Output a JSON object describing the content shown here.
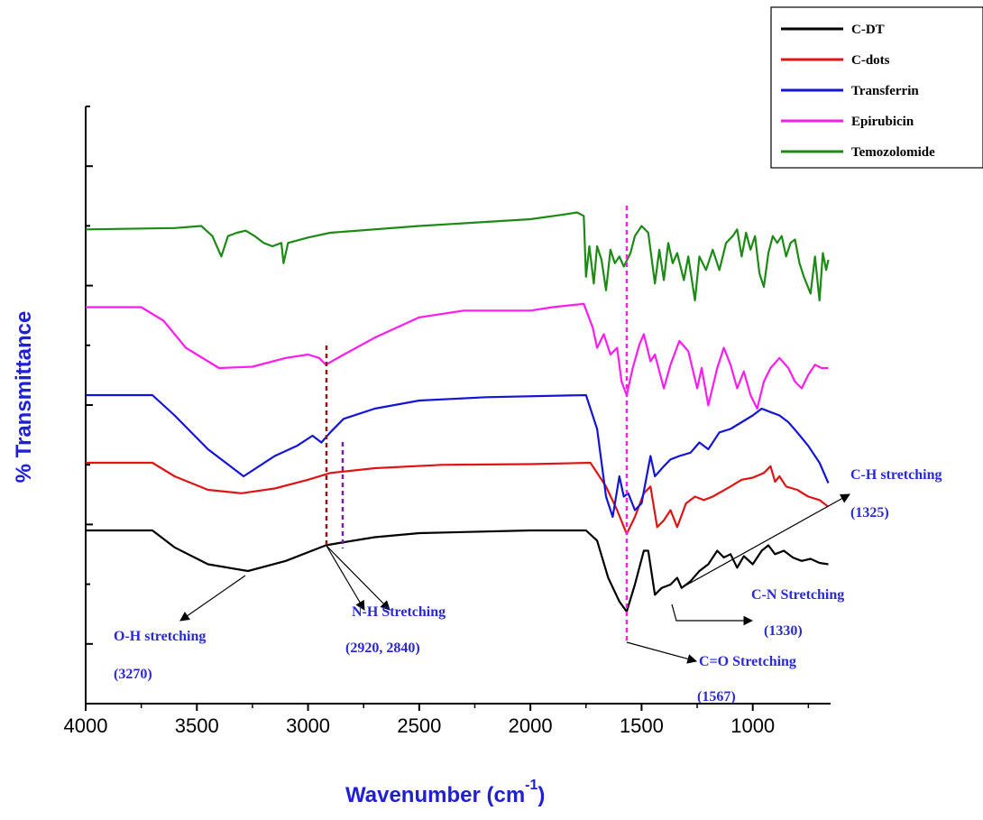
{
  "chart_data": {
    "type": "line",
    "title": "",
    "xlabel": "Wavenumber (cm",
    "xlabel_sup": "-1",
    "xlabel_close": ")",
    "ylabel": "% Transmittance",
    "xlim": [
      4000,
      650
    ],
    "x_reversed": true,
    "x_ticks": [
      4000,
      3500,
      3000,
      2500,
      2000,
      1500,
      1000
    ],
    "x_tick_labels": [
      "4000",
      "3500",
      "3000",
      "2500",
      "2000",
      "1500",
      "1000"
    ],
    "y_tick_count": 10,
    "y_tick_labels_shown": false,
    "legend_position": "top-right",
    "grid": false,
    "series": [
      {
        "name": "C-DT",
        "color": "#000000",
        "offset": 0,
        "points": [
          [
            4000,
            0
          ],
          [
            3700,
            0
          ],
          [
            3600,
            -0.25
          ],
          [
            3450,
            -0.5
          ],
          [
            3270,
            -0.6
          ],
          [
            3100,
            -0.45
          ],
          [
            2920,
            -0.22
          ],
          [
            2850,
            -0.18
          ],
          [
            2700,
            -0.1
          ],
          [
            2500,
            -0.04
          ],
          [
            2000,
            0
          ],
          [
            1750,
            0
          ],
          [
            1700,
            -0.15
          ],
          [
            1650,
            -0.7
          ],
          [
            1600,
            -1.05
          ],
          [
            1567,
            -1.2
          ],
          [
            1530,
            -0.8
          ],
          [
            1490,
            -0.3
          ],
          [
            1470,
            -0.3
          ],
          [
            1440,
            -0.95
          ],
          [
            1410,
            -0.85
          ],
          [
            1370,
            -0.8
          ],
          [
            1340,
            -0.7
          ],
          [
            1320,
            -0.85
          ],
          [
            1280,
            -0.75
          ],
          [
            1240,
            -0.6
          ],
          [
            1200,
            -0.5
          ],
          [
            1160,
            -0.3
          ],
          [
            1130,
            -0.4
          ],
          [
            1100,
            -0.35
          ],
          [
            1070,
            -0.55
          ],
          [
            1040,
            -0.38
          ],
          [
            1000,
            -0.5
          ],
          [
            960,
            -0.3
          ],
          [
            930,
            -0.22
          ],
          [
            900,
            -0.35
          ],
          [
            860,
            -0.3
          ],
          [
            820,
            -0.4
          ],
          [
            780,
            -0.45
          ],
          [
            740,
            -0.42
          ],
          [
            700,
            -0.48
          ],
          [
            660,
            -0.5
          ]
        ]
      },
      {
        "name": "C-dots",
        "color": "#e01414",
        "offset": 1,
        "points": [
          [
            4000,
            0
          ],
          [
            3700,
            0
          ],
          [
            3600,
            -0.2
          ],
          [
            3450,
            -0.4
          ],
          [
            3300,
            -0.45
          ],
          [
            3150,
            -0.38
          ],
          [
            3000,
            -0.25
          ],
          [
            2900,
            -0.15
          ],
          [
            2700,
            -0.08
          ],
          [
            2400,
            -0.03
          ],
          [
            2000,
            -0.02
          ],
          [
            1730,
            0
          ],
          [
            1690,
            -0.2
          ],
          [
            1660,
            -0.35
          ],
          [
            1610,
            -0.7
          ],
          [
            1567,
            -1.05
          ],
          [
            1530,
            -0.8
          ],
          [
            1490,
            -0.45
          ],
          [
            1460,
            -0.35
          ],
          [
            1430,
            -0.95
          ],
          [
            1400,
            -0.85
          ],
          [
            1370,
            -0.7
          ],
          [
            1340,
            -0.95
          ],
          [
            1300,
            -0.6
          ],
          [
            1260,
            -0.5
          ],
          [
            1220,
            -0.55
          ],
          [
            1180,
            -0.5
          ],
          [
            1100,
            -0.35
          ],
          [
            1050,
            -0.25
          ],
          [
            1000,
            -0.22
          ],
          [
            950,
            -0.15
          ],
          [
            920,
            -0.05
          ],
          [
            900,
            -0.28
          ],
          [
            880,
            -0.2
          ],
          [
            850,
            -0.35
          ],
          [
            800,
            -0.4
          ],
          [
            750,
            -0.5
          ],
          [
            700,
            -0.55
          ],
          [
            660,
            -0.65
          ]
        ]
      },
      {
        "name": "Transferrin",
        "color": "#1414d8",
        "offset": 2,
        "points": [
          [
            4000,
            0
          ],
          [
            3700,
            0
          ],
          [
            3600,
            -0.3
          ],
          [
            3450,
            -0.8
          ],
          [
            3290,
            -1.2
          ],
          [
            3150,
            -0.9
          ],
          [
            3050,
            -0.75
          ],
          [
            2980,
            -0.6
          ],
          [
            2940,
            -0.7
          ],
          [
            2900,
            -0.55
          ],
          [
            2840,
            -0.35
          ],
          [
            2700,
            -0.2
          ],
          [
            2500,
            -0.08
          ],
          [
            2200,
            -0.03
          ],
          [
            1750,
            0
          ],
          [
            1700,
            -0.5
          ],
          [
            1660,
            -1.5
          ],
          [
            1630,
            -1.8
          ],
          [
            1600,
            -1.2
          ],
          [
            1580,
            -1.5
          ],
          [
            1560,
            -1.45
          ],
          [
            1530,
            -1.7
          ],
          [
            1500,
            -1.6
          ],
          [
            1460,
            -0.9
          ],
          [
            1440,
            -1.2
          ],
          [
            1400,
            -1.05
          ],
          [
            1370,
            -0.95
          ],
          [
            1330,
            -0.9
          ],
          [
            1280,
            -0.85
          ],
          [
            1240,
            -0.7
          ],
          [
            1200,
            -0.8
          ],
          [
            1150,
            -0.55
          ],
          [
            1100,
            -0.5
          ],
          [
            1050,
            -0.4
          ],
          [
            1000,
            -0.3
          ],
          [
            960,
            -0.2
          ],
          [
            920,
            -0.25
          ],
          [
            880,
            -0.3
          ],
          [
            840,
            -0.4
          ],
          [
            800,
            -0.55
          ],
          [
            750,
            -0.75
          ],
          [
            700,
            -1.0
          ],
          [
            660,
            -1.3
          ]
        ]
      },
      {
        "name": "Epirubicin",
        "color": "#ff1cf0",
        "offset": 3.3,
        "points": [
          [
            4000,
            0
          ],
          [
            3750,
            0
          ],
          [
            3650,
            -0.2
          ],
          [
            3550,
            -0.6
          ],
          [
            3400,
            -0.9
          ],
          [
            3250,
            -0.88
          ],
          [
            3100,
            -0.75
          ],
          [
            3000,
            -0.7
          ],
          [
            2950,
            -0.75
          ],
          [
            2920,
            -0.85
          ],
          [
            2850,
            -0.72
          ],
          [
            2700,
            -0.45
          ],
          [
            2500,
            -0.15
          ],
          [
            2300,
            -0.05
          ],
          [
            2000,
            -0.05
          ],
          [
            1900,
            0
          ],
          [
            1760,
            0.05
          ],
          [
            1720,
            -0.3
          ],
          [
            1700,
            -0.6
          ],
          [
            1670,
            -0.4
          ],
          [
            1640,
            -0.7
          ],
          [
            1610,
            -0.6
          ],
          [
            1590,
            -1.1
          ],
          [
            1567,
            -1.3
          ],
          [
            1540,
            -0.9
          ],
          [
            1510,
            -0.55
          ],
          [
            1490,
            -0.4
          ],
          [
            1460,
            -0.8
          ],
          [
            1440,
            -0.7
          ],
          [
            1400,
            -1.2
          ],
          [
            1370,
            -0.85
          ],
          [
            1330,
            -0.5
          ],
          [
            1290,
            -0.65
          ],
          [
            1250,
            -1.2
          ],
          [
            1230,
            -0.9
          ],
          [
            1200,
            -1.45
          ],
          [
            1160,
            -0.9
          ],
          [
            1130,
            -0.6
          ],
          [
            1100,
            -0.85
          ],
          [
            1070,
            -1.2
          ],
          [
            1040,
            -0.95
          ],
          [
            1010,
            -1.3
          ],
          [
            980,
            -1.5
          ],
          [
            950,
            -1.1
          ],
          [
            920,
            -0.9
          ],
          [
            880,
            -0.75
          ],
          [
            840,
            -0.9
          ],
          [
            810,
            -1.1
          ],
          [
            780,
            -1.2
          ],
          [
            750,
            -1.0
          ],
          [
            720,
            -0.85
          ],
          [
            690,
            -0.9
          ],
          [
            660,
            -0.9
          ]
        ]
      },
      {
        "name": "Temozolomide",
        "color": "#1c8a14",
        "offset": 4.45,
        "points": [
          [
            4000,
            0
          ],
          [
            3600,
            0.02
          ],
          [
            3480,
            0.05
          ],
          [
            3430,
            -0.1
          ],
          [
            3390,
            -0.4
          ],
          [
            3360,
            -0.1
          ],
          [
            3320,
            -0.05
          ],
          [
            3280,
            -0.02
          ],
          [
            3240,
            -0.1
          ],
          [
            3200,
            -0.2
          ],
          [
            3160,
            -0.25
          ],
          [
            3120,
            -0.2
          ],
          [
            3110,
            -0.5
          ],
          [
            3090,
            -0.2
          ],
          [
            3000,
            -0.12
          ],
          [
            2900,
            -0.05
          ],
          [
            2500,
            0.05
          ],
          [
            2000,
            0.15
          ],
          [
            1850,
            0.22
          ],
          [
            1790,
            0.25
          ],
          [
            1760,
            0.2
          ],
          [
            1750,
            -0.7
          ],
          [
            1735,
            -0.25
          ],
          [
            1715,
            -0.8
          ],
          [
            1700,
            -0.25
          ],
          [
            1680,
            -0.45
          ],
          [
            1660,
            -0.9
          ],
          [
            1640,
            -0.3
          ],
          [
            1620,
            -0.5
          ],
          [
            1600,
            -0.4
          ],
          [
            1580,
            -0.55
          ],
          [
            1550,
            -0.35
          ],
          [
            1530,
            -0.1
          ],
          [
            1500,
            0.05
          ],
          [
            1470,
            -0.05
          ],
          [
            1440,
            -0.8
          ],
          [
            1420,
            -0.3
          ],
          [
            1400,
            -0.75
          ],
          [
            1380,
            -0.2
          ],
          [
            1360,
            -0.5
          ],
          [
            1340,
            -0.35
          ],
          [
            1310,
            -0.75
          ],
          [
            1290,
            -0.4
          ],
          [
            1260,
            -1.05
          ],
          [
            1240,
            -0.4
          ],
          [
            1210,
            -0.6
          ],
          [
            1180,
            -0.3
          ],
          [
            1150,
            -0.6
          ],
          [
            1120,
            -0.2
          ],
          [
            1090,
            -0.1
          ],
          [
            1070,
            0.0
          ],
          [
            1050,
            -0.4
          ],
          [
            1030,
            -0.05
          ],
          [
            1010,
            -0.3
          ],
          [
            990,
            -0.1
          ],
          [
            970,
            -0.65
          ],
          [
            950,
            -0.85
          ],
          [
            930,
            -0.35
          ],
          [
            910,
            -0.1
          ],
          [
            890,
            -0.2
          ],
          [
            870,
            -0.1
          ],
          [
            850,
            -0.4
          ],
          [
            830,
            -0.2
          ],
          [
            810,
            -0.15
          ],
          [
            790,
            -0.5
          ],
          [
            770,
            -0.7
          ],
          [
            740,
            -0.95
          ],
          [
            720,
            -0.4
          ],
          [
            700,
            -1.05
          ],
          [
            685,
            -0.35
          ],
          [
            670,
            -0.6
          ],
          [
            660,
            -0.45
          ]
        ]
      }
    ],
    "annotations": [
      {
        "label": "O-H stretching",
        "value": "(3270)"
      },
      {
        "label": "N-H Stretching",
        "value": "(2920, 2840)"
      },
      {
        "label": "C=O Stretching",
        "value": "(1567)"
      },
      {
        "label": "C-H stretching",
        "value": "(1325)"
      },
      {
        "label": "C-N Stretching",
        "value": "(1330)"
      }
    ]
  }
}
